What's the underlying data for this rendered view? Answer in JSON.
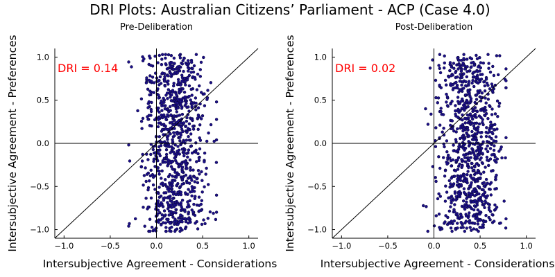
{
  "title": "DRI Plots: Australian Citizens’ Parliament - ACP (Case 4.0)",
  "chart_data": [
    {
      "type": "scatter",
      "subtitle": "Pre-Deliberation",
      "xlabel": "Intersubjective Agreement - Considerations",
      "ylabel": "Intersubjective Agreement - Preferences",
      "xlim": [
        -1.1,
        1.1
      ],
      "ylim": [
        -1.1,
        1.1
      ],
      "xticks": [
        -1.0,
        -0.5,
        0.0,
        0.5,
        1.0
      ],
      "xtick_labels": [
        "−1.0",
        "−0.5",
        "0.0",
        "0.5",
        "1.0"
      ],
      "yticks": [
        -1.0,
        -0.5,
        0.0,
        0.5,
        1.0
      ],
      "ytick_labels": [
        "−1.0",
        "−0.5",
        "0.0",
        "0.5",
        "1.0"
      ],
      "annotation": "DRI = 0.14",
      "point_color": "#1c0f8a",
      "grid": false,
      "reference_lines": [
        "x = 0",
        "y = 0",
        "y = x"
      ],
      "point_cloud": {
        "count": 900,
        "x_range": [
          -0.3,
          0.65
        ],
        "x_mean": 0.2,
        "y_range": [
          -1.0,
          1.0
        ]
      }
    },
    {
      "type": "scatter",
      "subtitle": "Post-Deliberation",
      "xlabel": "Intersubjective Agreement - Considerations",
      "ylabel": "Intersubjective Agreement - Preferences",
      "xlim": [
        -1.1,
        1.1
      ],
      "ylim": [
        -1.1,
        1.1
      ],
      "xticks": [
        -1.0,
        -0.5,
        0.0,
        0.5,
        1.0
      ],
      "xtick_labels": [
        "−1.0",
        "−0.5",
        "0.0",
        "0.5",
        "1.0"
      ],
      "yticks": [
        -1.0,
        -0.5,
        0.0,
        0.5,
        1.0
      ],
      "ytick_labels": [
        "−1.0",
        "−0.5",
        "0.0",
        "0.5",
        "1.0"
      ],
      "annotation": "DRI = 0.02",
      "point_color": "#1c0f8a",
      "grid": false,
      "reference_lines": [
        "x = 0",
        "y = 0",
        "y = x"
      ],
      "point_cloud": {
        "count": 900,
        "x_range": [
          -0.15,
          0.78
        ],
        "x_mean": 0.38,
        "y_range": [
          -1.0,
          1.0
        ]
      }
    }
  ]
}
